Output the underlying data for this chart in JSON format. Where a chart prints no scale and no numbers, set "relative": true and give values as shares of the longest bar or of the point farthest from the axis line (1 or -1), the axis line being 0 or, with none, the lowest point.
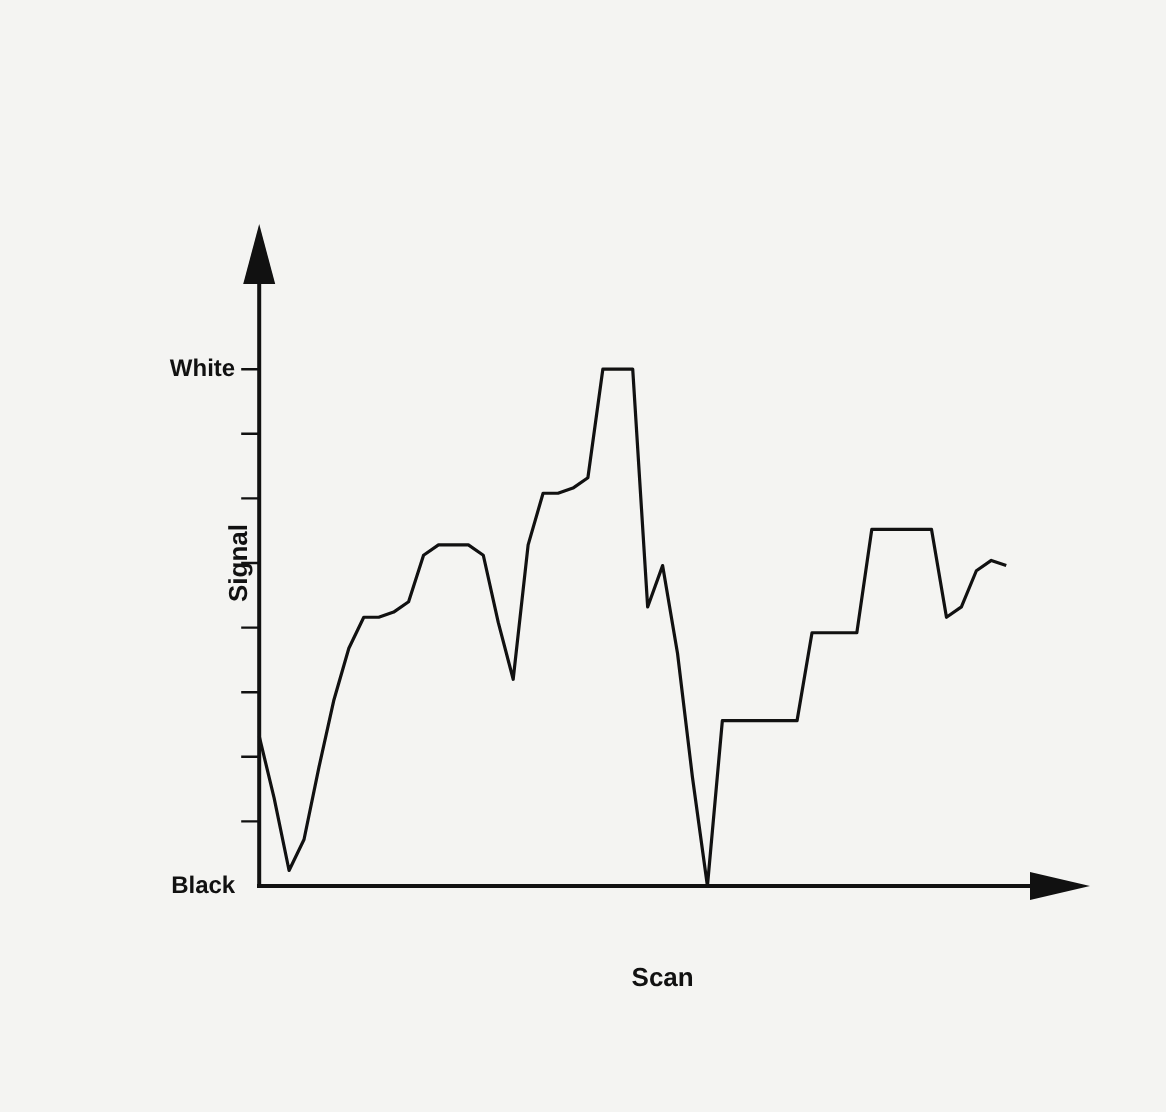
{
  "chart_data": {
    "type": "line",
    "xlabel": "Scan",
    "ylabel": "Signal",
    "color": "#111111",
    "grid": false,
    "legend": false,
    "marker": "none",
    "line_style": "solid",
    "categories": [
      null,
      null,
      null,
      null,
      null,
      null,
      null,
      null,
      null,
      null,
      null,
      null,
      null,
      null,
      null,
      null,
      null,
      null,
      null,
      null,
      null,
      null,
      null,
      null,
      null,
      null,
      null,
      null,
      null,
      null,
      null,
      null,
      null,
      null,
      null,
      null,
      null,
      null,
      null,
      null,
      null,
      null,
      null,
      null,
      null,
      null,
      null,
      null,
      null,
      null,
      null,
      null,
      null,
      null,
      null
    ],
    "values": [
      0.29,
      0.17,
      0.03,
      0.09,
      0.23,
      0.36,
      0.46,
      0.52,
      0.52,
      0.53,
      0.55,
      0.64,
      0.66,
      0.66,
      0.66,
      0.64,
      0.51,
      0.4,
      0.66,
      0.76,
      0.76,
      0.77,
      0.79,
      1,
      1,
      1,
      0.54,
      0.62,
      0.45,
      0.21,
      0,
      0.32,
      0.32,
      0.32,
      0.32,
      0.32,
      0.32,
      0.49,
      0.49,
      0.49,
      0.49,
      0.69,
      0.69,
      0.69,
      0.69,
      0.69,
      0.52,
      0.54,
      0.61,
      0.63,
      0.62,
      null,
      null,
      null,
      null
    ],
    "relative": true,
    "annotations": [
      "Black",
      "White"
    ]
  }
}
